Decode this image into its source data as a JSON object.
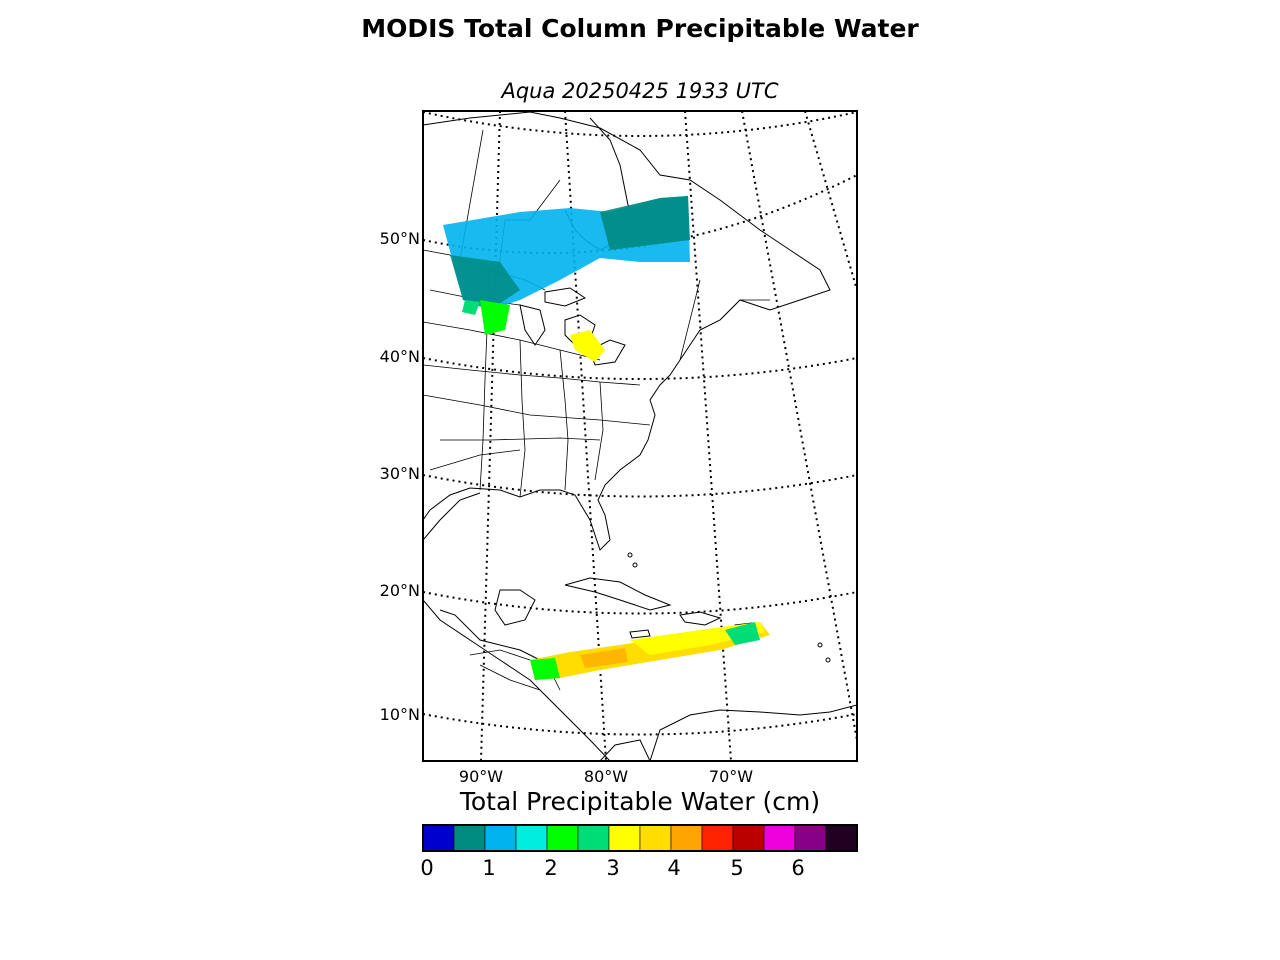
{
  "title": "MODIS Total Column Precipitable Water",
  "subtitle": "Aqua 20250425 1933 UTC",
  "latitude_labels": [
    "50°N",
    "40°N",
    "30°N",
    "20°N",
    "10°N"
  ],
  "longitude_labels": [
    "90°W",
    "80°W",
    "70°W"
  ],
  "colorbar": {
    "title": "Total Precipitable Water (cm)",
    "ticks": [
      "0",
      "1",
      "2",
      "3",
      "4",
      "5",
      "6"
    ],
    "colors": [
      "#0000cc",
      "#008b80",
      "#00b2ee",
      "#00eedd",
      "#00ff00",
      "#00dd77",
      "#ffff00",
      "#ffdd00",
      "#ffa500",
      "#ff2200",
      "#bb0000",
      "#ee00dd",
      "#880088",
      "#220022"
    ]
  }
}
